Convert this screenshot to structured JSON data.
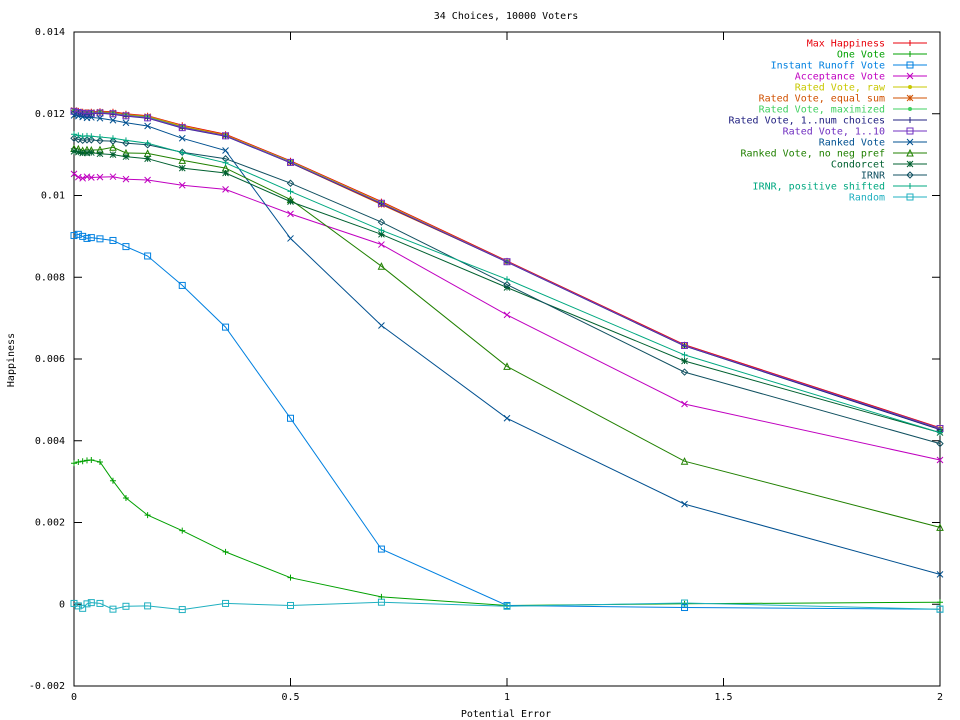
{
  "chart_data": {
    "type": "line",
    "title": "34 Choices, 10000 Voters",
    "xlabel": "Potential Error",
    "ylabel": "Happiness",
    "xlim": [
      0,
      2
    ],
    "ylim": [
      -0.002,
      0.014
    ],
    "x_ticks": [
      "0",
      "0.5",
      "1",
      "1.5",
      "2"
    ],
    "y_ticks": [
      "-0.002",
      "0",
      "0.002",
      "0.004",
      "0.006",
      "0.008",
      "0.01",
      "0.012",
      "0.014"
    ],
    "grid": false,
    "legend_position": "top-right",
    "x": [
      0,
      0.01,
      0.02,
      0.03,
      0.04,
      0.06,
      0.09,
      0.12,
      0.17,
      0.25,
      0.35,
      0.5,
      0.71,
      1.0,
      1.41,
      2.0
    ],
    "series": [
      {
        "name": "Max Happiness",
        "color": "#e8000b",
        "marker": "plus-dot",
        "values": [
          0.01208,
          0.01207,
          0.01205,
          0.01204,
          0.01205,
          0.01206,
          0.01205,
          0.012,
          0.01195,
          0.01172,
          0.0115,
          0.01085,
          0.00985,
          0.0084,
          0.00635,
          0.00432
        ]
      },
      {
        "name": "One Vote",
        "color": "#00a000",
        "marker": "plus",
        "values": [
          0.00345,
          0.00348,
          0.0035,
          0.00352,
          0.00353,
          0.00348,
          0.00302,
          0.0026,
          0.00218,
          0.0018,
          0.00128,
          0.00065,
          0.00018,
          -3e-05,
          1e-05,
          5e-05
        ]
      },
      {
        "name": "Instant Runoff Vote",
        "color": "#0080e0",
        "marker": "square",
        "values": [
          0.00902,
          0.00905,
          0.009,
          0.00895,
          0.00897,
          0.00894,
          0.0089,
          0.00875,
          0.00852,
          0.0078,
          0.00678,
          0.00455,
          0.00135,
          -3e-05,
          -8e-05,
          -0.00012
        ]
      },
      {
        "name": "Acceptance Vote",
        "color": "#c000c0",
        "marker": "x",
        "values": [
          0.01053,
          0.01045,
          0.01042,
          0.01046,
          0.01044,
          0.01045,
          0.01046,
          0.0104,
          0.01038,
          0.01025,
          0.01015,
          0.00955,
          0.0088,
          0.00708,
          0.0049,
          0.00353
        ]
      },
      {
        "name": "Rated Vote, raw",
        "color": "#c8c800",
        "marker": "dot",
        "values": [
          0.0121,
          0.01206,
          0.01204,
          0.01203,
          0.01204,
          0.01205,
          0.01203,
          0.01198,
          0.01194,
          0.0117,
          0.01148,
          0.01083,
          0.00983,
          0.00838,
          0.00633,
          0.0043
        ]
      },
      {
        "name": "Rated Vote, equal sum",
        "color": "#d05000",
        "marker": "star",
        "values": [
          0.01208,
          0.01205,
          0.01203,
          0.01202,
          0.01203,
          0.01204,
          0.01202,
          0.01197,
          0.01193,
          0.01168,
          0.01147,
          0.0108,
          0.00978,
          0.00838,
          0.00633,
          0.00428
        ]
      },
      {
        "name": "Rated Vote, maximized",
        "color": "#40d060",
        "marker": "dot",
        "values": [
          0.01207,
          0.01204,
          0.01202,
          0.01201,
          0.01202,
          0.01203,
          0.01201,
          0.01196,
          0.01192,
          0.01167,
          0.01146,
          0.01082,
          0.00981,
          0.00838,
          0.00632,
          0.00428
        ]
      },
      {
        "name": "Rated Vote, 1..num choices",
        "color": "#202080",
        "marker": "plus",
        "values": [
          0.01205,
          0.01203,
          0.012,
          0.01199,
          0.012,
          0.01201,
          0.01199,
          0.01194,
          0.01189,
          0.01165,
          0.01145,
          0.0108,
          0.0098,
          0.00837,
          0.00632,
          0.00427
        ]
      },
      {
        "name": "Rated Vote, 1..10",
        "color": "#7030c0",
        "marker": "square",
        "values": [
          0.01206,
          0.01203,
          0.01201,
          0.012,
          0.01201,
          0.01202,
          0.012,
          0.01195,
          0.0119,
          0.01166,
          0.01146,
          0.01081,
          0.00981,
          0.00838,
          0.00633,
          0.0043
        ]
      },
      {
        "name": "Ranked Vote",
        "color": "#005090",
        "marker": "x",
        "values": [
          0.01196,
          0.01194,
          0.01192,
          0.0119,
          0.01191,
          0.01189,
          0.01184,
          0.01178,
          0.0117,
          0.0114,
          0.0111,
          0.00895,
          0.00682,
          0.00455,
          0.00245,
          0.00073
        ]
      },
      {
        "name": "Ranked Vote, no neg pref",
        "color": "#208000",
        "marker": "triangle",
        "values": [
          0.01115,
          0.01114,
          0.0111,
          0.01112,
          0.01111,
          0.01112,
          0.01118,
          0.01104,
          0.01103,
          0.01086,
          0.01067,
          0.0099,
          0.00827,
          0.00582,
          0.0035,
          0.00188
        ]
      },
      {
        "name": "Condorcet",
        "color": "#006030",
        "marker": "star",
        "values": [
          0.01108,
          0.01106,
          0.01104,
          0.01104,
          0.01105,
          0.01102,
          0.011,
          0.01095,
          0.0109,
          0.01067,
          0.01055,
          0.00985,
          0.00905,
          0.00775,
          0.00595,
          0.0042
        ]
      },
      {
        "name": "IRNR",
        "color": "#105060",
        "marker": "diamond",
        "values": [
          0.0114,
          0.01137,
          0.01135,
          0.01136,
          0.01136,
          0.01134,
          0.01133,
          0.01128,
          0.01124,
          0.01106,
          0.0109,
          0.0103,
          0.00935,
          0.00782,
          0.00568,
          0.00393
        ]
      },
      {
        "name": "IRNR, positive shifted",
        "color": "#00a880",
        "marker": "plus",
        "values": [
          0.0115,
          0.01147,
          0.01145,
          0.01146,
          0.01145,
          0.01143,
          0.0114,
          0.01135,
          0.01128,
          0.01105,
          0.0108,
          0.0101,
          0.00915,
          0.00795,
          0.0061,
          0.0042
        ]
      },
      {
        "name": "Random",
        "color": "#20b0c0",
        "marker": "square",
        "values": [
          2e-05,
          -4e-05,
          -0.0001,
          1e-05,
          4e-05,
          2e-05,
          -0.00012,
          -5e-05,
          -4e-05,
          -0.00013,
          2e-05,
          -3e-05,
          5e-05,
          -5e-05,
          3e-05,
          -0.00012
        ]
      }
    ]
  }
}
